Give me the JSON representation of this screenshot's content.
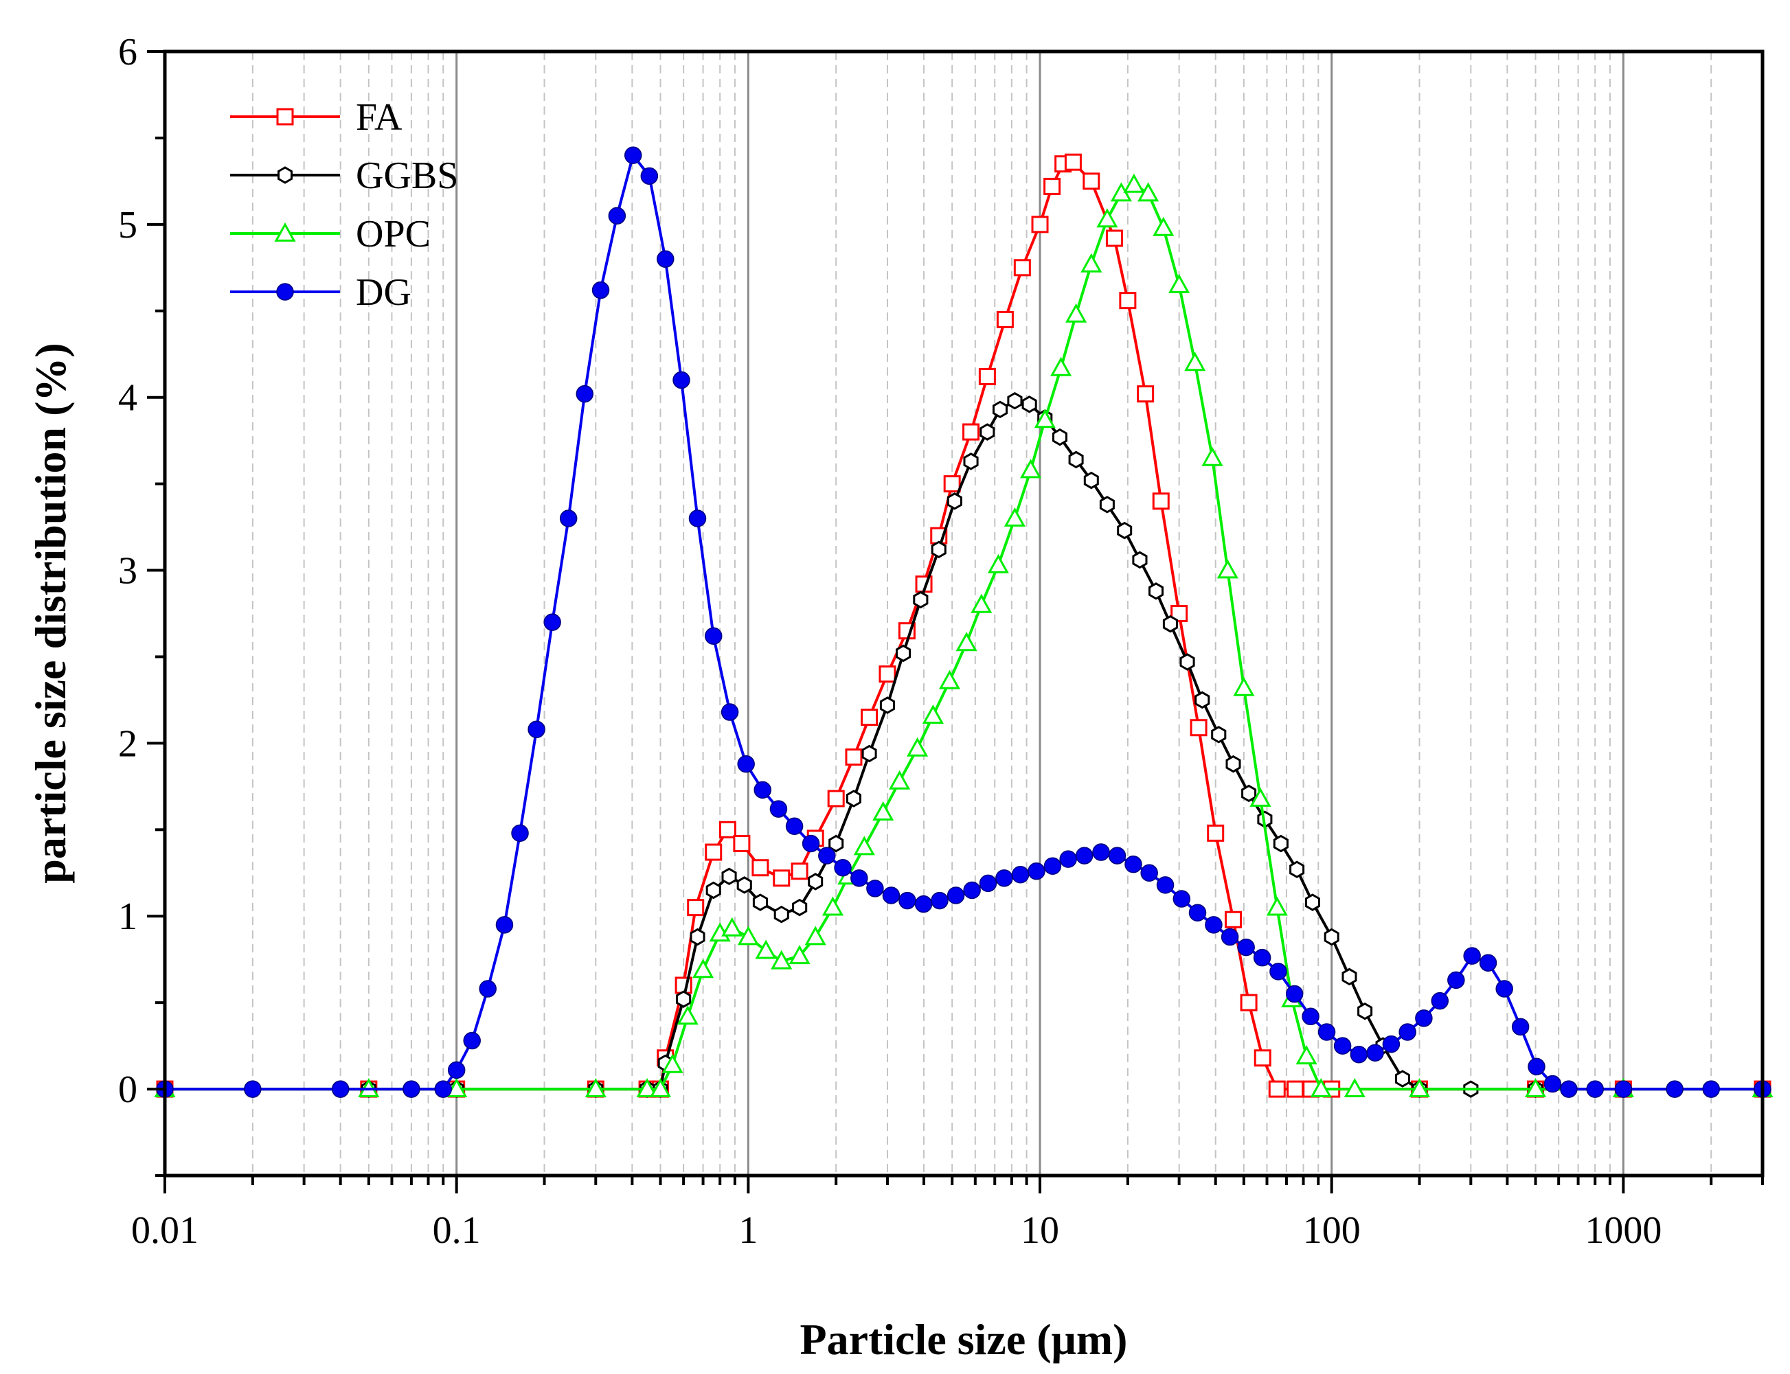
{
  "chart_data": {
    "type": "line",
    "title": "",
    "xlabel": "Particle size (μm)",
    "ylabel": "particle size distribution (%)",
    "x_scale": "log",
    "xlim": [
      0.01,
      3000
    ],
    "ylim": [
      -0.5,
      6
    ],
    "x_ticks": [
      0.01,
      0.1,
      1,
      10,
      100,
      1000
    ],
    "x_tick_labels": [
      "0.01",
      "0.1",
      "1",
      "10",
      "100",
      "1000"
    ],
    "y_ticks": [
      0,
      1,
      2,
      3,
      4,
      5,
      6
    ],
    "y_tick_labels": [
      "0",
      "1",
      "2",
      "3",
      "4",
      "5",
      "6"
    ],
    "grid": "vertical major solid + minor dashed",
    "legend_position": "top-left",
    "series": [
      {
        "name": "FA",
        "color": "#ff0000",
        "marker": "open-square",
        "points": [
          [
            0.01,
            0
          ],
          [
            0.05,
            0
          ],
          [
            0.1,
            0
          ],
          [
            0.3,
            0
          ],
          [
            0.45,
            0
          ],
          [
            0.5,
            0
          ],
          [
            0.52,
            0.18
          ],
          [
            0.6,
            0.6
          ],
          [
            0.66,
            1.05
          ],
          [
            0.76,
            1.37
          ],
          [
            0.85,
            1.5
          ],
          [
            0.95,
            1.42
          ],
          [
            1.1,
            1.28
          ],
          [
            1.3,
            1.22
          ],
          [
            1.5,
            1.26
          ],
          [
            1.7,
            1.45
          ],
          [
            2.0,
            1.68
          ],
          [
            2.3,
            1.92
          ],
          [
            2.6,
            2.15
          ],
          [
            3.0,
            2.4
          ],
          [
            3.5,
            2.65
          ],
          [
            4.0,
            2.92
          ],
          [
            4.5,
            3.2
          ],
          [
            5.0,
            3.5
          ],
          [
            5.8,
            3.8
          ],
          [
            6.6,
            4.12
          ],
          [
            7.6,
            4.45
          ],
          [
            8.7,
            4.75
          ],
          [
            10.0,
            5.0
          ],
          [
            11.0,
            5.22
          ],
          [
            12.0,
            5.35
          ],
          [
            13.0,
            5.36
          ],
          [
            15.0,
            5.25
          ],
          [
            18.0,
            4.92
          ],
          [
            20.0,
            4.56
          ],
          [
            23.0,
            4.02
          ],
          [
            26.0,
            3.4
          ],
          [
            30.0,
            2.75
          ],
          [
            35.0,
            2.09
          ],
          [
            40.0,
            1.48
          ],
          [
            46.0,
            0.98
          ],
          [
            52.0,
            0.5
          ],
          [
            58.0,
            0.18
          ],
          [
            65.0,
            0
          ],
          [
            75.0,
            0
          ],
          [
            85.0,
            0
          ],
          [
            100.0,
            0
          ],
          [
            200,
            0
          ],
          [
            500,
            0
          ],
          [
            1000,
            0
          ],
          [
            3000,
            0
          ]
        ]
      },
      {
        "name": "GGBS",
        "color": "#000000",
        "marker": "open-hexagon",
        "points": [
          [
            0.01,
            0
          ],
          [
            0.05,
            0
          ],
          [
            0.1,
            0
          ],
          [
            0.3,
            0
          ],
          [
            0.45,
            0
          ],
          [
            0.5,
            0
          ],
          [
            0.52,
            0.15
          ],
          [
            0.6,
            0.52
          ],
          [
            0.67,
            0.88
          ],
          [
            0.76,
            1.15
          ],
          [
            0.86,
            1.23
          ],
          [
            0.97,
            1.18
          ],
          [
            1.1,
            1.08
          ],
          [
            1.3,
            1.01
          ],
          [
            1.5,
            1.05
          ],
          [
            1.7,
            1.2
          ],
          [
            2.0,
            1.42
          ],
          [
            2.3,
            1.68
          ],
          [
            2.6,
            1.94
          ],
          [
            3.0,
            2.22
          ],
          [
            3.4,
            2.52
          ],
          [
            3.9,
            2.83
          ],
          [
            4.5,
            3.12
          ],
          [
            5.1,
            3.4
          ],
          [
            5.8,
            3.63
          ],
          [
            6.6,
            3.8
          ],
          [
            7.3,
            3.93
          ],
          [
            8.2,
            3.98
          ],
          [
            9.2,
            3.96
          ],
          [
            10.4,
            3.88
          ],
          [
            11.7,
            3.77
          ],
          [
            13.3,
            3.64
          ],
          [
            15.0,
            3.52
          ],
          [
            17.0,
            3.38
          ],
          [
            19.5,
            3.23
          ],
          [
            22.0,
            3.06
          ],
          [
            25.0,
            2.88
          ],
          [
            28.0,
            2.69
          ],
          [
            32.0,
            2.47
          ],
          [
            36.0,
            2.25
          ],
          [
            41.0,
            2.05
          ],
          [
            46.0,
            1.88
          ],
          [
            52.0,
            1.71
          ],
          [
            59.0,
            1.56
          ],
          [
            67.0,
            1.42
          ],
          [
            76.0,
            1.27
          ],
          [
            86.0,
            1.08
          ],
          [
            100.0,
            0.88
          ],
          [
            115.0,
            0.65
          ],
          [
            130.0,
            0.45
          ],
          [
            150.0,
            0.25
          ],
          [
            175.0,
            0.06
          ],
          [
            200.0,
            0
          ],
          [
            300,
            0
          ],
          [
            500,
            0
          ],
          [
            1000,
            0
          ],
          [
            3000,
            0
          ]
        ]
      },
      {
        "name": "OPC",
        "color": "#00ee00",
        "marker": "open-triangle",
        "points": [
          [
            0.01,
            0
          ],
          [
            0.05,
            0
          ],
          [
            0.1,
            0
          ],
          [
            0.3,
            0
          ],
          [
            0.45,
            0
          ],
          [
            0.5,
            0
          ],
          [
            0.55,
            0.14
          ],
          [
            0.62,
            0.42
          ],
          [
            0.7,
            0.69
          ],
          [
            0.8,
            0.9
          ],
          [
            0.88,
            0.93
          ],
          [
            1.0,
            0.88
          ],
          [
            1.15,
            0.8
          ],
          [
            1.3,
            0.74
          ],
          [
            1.5,
            0.77
          ],
          [
            1.7,
            0.88
          ],
          [
            1.95,
            1.05
          ],
          [
            2.2,
            1.23
          ],
          [
            2.5,
            1.4
          ],
          [
            2.9,
            1.6
          ],
          [
            3.3,
            1.78
          ],
          [
            3.8,
            1.97
          ],
          [
            4.3,
            2.16
          ],
          [
            4.9,
            2.36
          ],
          [
            5.6,
            2.58
          ],
          [
            6.3,
            2.8
          ],
          [
            7.2,
            3.03
          ],
          [
            8.2,
            3.3
          ],
          [
            9.3,
            3.58
          ],
          [
            10.4,
            3.87
          ],
          [
            11.8,
            4.17
          ],
          [
            13.3,
            4.48
          ],
          [
            15.0,
            4.77
          ],
          [
            17.0,
            5.03
          ],
          [
            19.0,
            5.18
          ],
          [
            21.0,
            5.23
          ],
          [
            23.5,
            5.18
          ],
          [
            26.5,
            4.98
          ],
          [
            30.0,
            4.65
          ],
          [
            34.0,
            4.2
          ],
          [
            39.0,
            3.65
          ],
          [
            44.0,
            3.0
          ],
          [
            50.0,
            2.32
          ],
          [
            57.0,
            1.68
          ],
          [
            65.0,
            1.05
          ],
          [
            73.0,
            0.52
          ],
          [
            82.0,
            0.19
          ],
          [
            92.0,
            0
          ],
          [
            120,
            0
          ],
          [
            200,
            0
          ],
          [
            500,
            0
          ],
          [
            1000,
            0
          ],
          [
            3000,
            0
          ]
        ]
      },
      {
        "name": "DG",
        "color": "#0000ee",
        "marker": "filled-circle",
        "points": [
          [
            0.01,
            0
          ],
          [
            0.02,
            0
          ],
          [
            0.04,
            0
          ],
          [
            0.07,
            0
          ],
          [
            0.09,
            0
          ],
          [
            0.1,
            0.11
          ],
          [
            0.113,
            0.28
          ],
          [
            0.128,
            0.58
          ],
          [
            0.146,
            0.95
          ],
          [
            0.165,
            1.48
          ],
          [
            0.188,
            2.08
          ],
          [
            0.213,
            2.7
          ],
          [
            0.242,
            3.3
          ],
          [
            0.275,
            4.02
          ],
          [
            0.312,
            4.62
          ],
          [
            0.355,
            5.05
          ],
          [
            0.403,
            5.4
          ],
          [
            0.458,
            5.28
          ],
          [
            0.52,
            4.8
          ],
          [
            0.59,
            4.1
          ],
          [
            0.67,
            3.3
          ],
          [
            0.76,
            2.62
          ],
          [
            0.865,
            2.18
          ],
          [
            0.983,
            1.88
          ],
          [
            1.12,
            1.73
          ],
          [
            1.27,
            1.62
          ],
          [
            1.44,
            1.52
          ],
          [
            1.64,
            1.42
          ],
          [
            1.86,
            1.35
          ],
          [
            2.11,
            1.28
          ],
          [
            2.4,
            1.22
          ],
          [
            2.72,
            1.16
          ],
          [
            3.09,
            1.12
          ],
          [
            3.51,
            1.09
          ],
          [
            3.99,
            1.07
          ],
          [
            4.53,
            1.09
          ],
          [
            5.15,
            1.12
          ],
          [
            5.85,
            1.15
          ],
          [
            6.64,
            1.19
          ],
          [
            7.54,
            1.22
          ],
          [
            8.57,
            1.24
          ],
          [
            9.73,
            1.26
          ],
          [
            11.05,
            1.29
          ],
          [
            12.5,
            1.33
          ],
          [
            14.2,
            1.35
          ],
          [
            16.2,
            1.37
          ],
          [
            18.4,
            1.35
          ],
          [
            20.9,
            1.3
          ],
          [
            23.7,
            1.25
          ],
          [
            26.9,
            1.18
          ],
          [
            30.6,
            1.1
          ],
          [
            34.7,
            1.02
          ],
          [
            39.4,
            0.95
          ],
          [
            44.8,
            0.88
          ],
          [
            50.9,
            0.82
          ],
          [
            57.8,
            0.76
          ],
          [
            65.6,
            0.68
          ],
          [
            74.6,
            0.55
          ],
          [
            84.7,
            0.42
          ],
          [
            96.2,
            0.33
          ],
          [
            109.0,
            0.25
          ],
          [
            124.0,
            0.2
          ],
          [
            141.0,
            0.21
          ],
          [
            160.0,
            0.26
          ],
          [
            182.0,
            0.33
          ],
          [
            207.0,
            0.41
          ],
          [
            235.0,
            0.51
          ],
          [
            267.0,
            0.63
          ],
          [
            303.0,
            0.77
          ],
          [
            344.0,
            0.73
          ],
          [
            391.0,
            0.58
          ],
          [
            444.0,
            0.36
          ],
          [
            504.0,
            0.13
          ],
          [
            572.0,
            0.03
          ],
          [
            650.0,
            0
          ],
          [
            800,
            0
          ],
          [
            1000,
            0
          ],
          [
            1500,
            0
          ],
          [
            2000,
            0
          ],
          [
            3000,
            0
          ]
        ]
      }
    ]
  }
}
